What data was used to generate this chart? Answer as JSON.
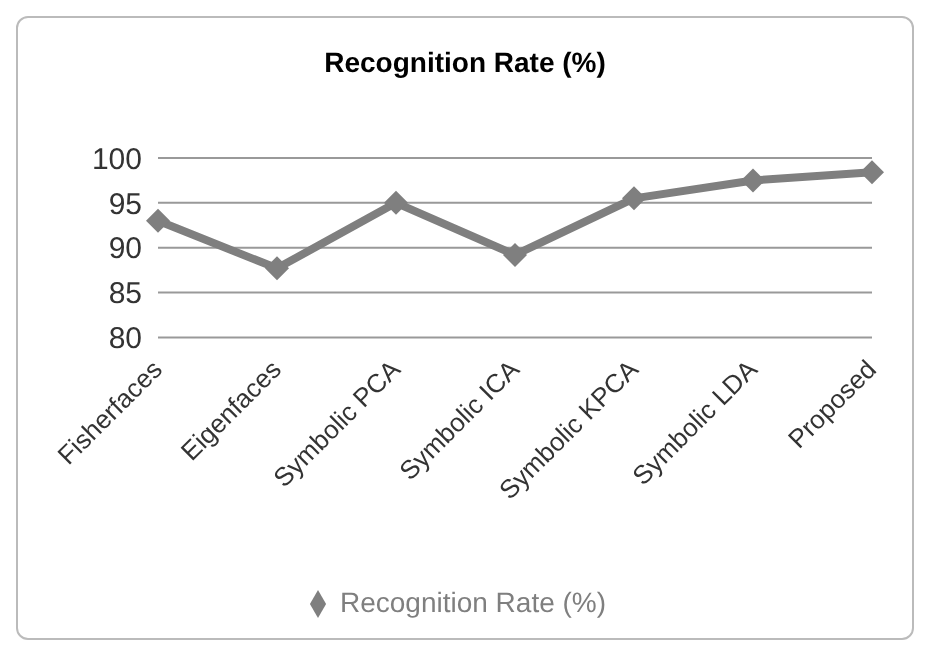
{
  "chart_data": {
    "type": "line",
    "title": "Recognition Rate (%)",
    "categories": [
      "Fisherfaces",
      "Eigenfaces",
      "Symbolic PCA",
      "Symbolic ICA",
      "Symbolic KPCA",
      "Symbolic LDA",
      "Proposed"
    ],
    "series": [
      {
        "name": "Recognition Rate (%)",
        "color": "#7f7f7f",
        "values": [
          93,
          87.7,
          95,
          89.2,
          95.5,
          97.5,
          98.4
        ]
      }
    ],
    "ylim": [
      80,
      100
    ],
    "yticks": [
      80,
      85,
      90,
      95,
      100
    ],
    "grid": "y",
    "legend": "bottom",
    "marker": "diamond",
    "line_style": "solid"
  }
}
